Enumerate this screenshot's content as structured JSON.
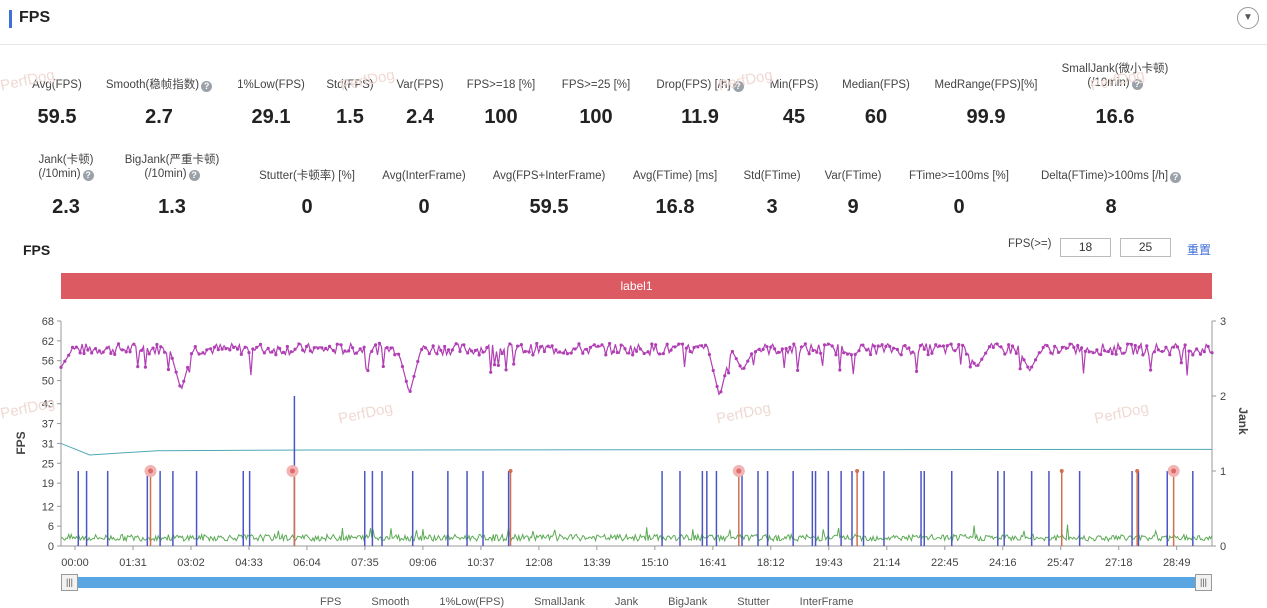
{
  "header": {
    "title": "FPS",
    "toggle_icon": "chevron-down-icon"
  },
  "metrics_row1": [
    {
      "label": "Avg(FPS)",
      "value": "59.5",
      "help": false
    },
    {
      "label": "Smooth(稳帧指数)",
      "value": "2.7",
      "help": true
    },
    {
      "label": "1%Low(FPS)",
      "value": "29.1",
      "help": false
    },
    {
      "label": "Std(FPS)",
      "value": "1.5",
      "help": false
    },
    {
      "label": "Var(FPS)",
      "value": "2.4",
      "help": false
    },
    {
      "label": "FPS>=18 [%]",
      "value": "100",
      "help": false
    },
    {
      "label": "FPS>=25 [%]",
      "value": "100",
      "help": false
    },
    {
      "label": "Drop(FPS) [/h]",
      "value": "11.9",
      "help": true
    },
    {
      "label": "Min(FPS)",
      "value": "45",
      "help": false
    },
    {
      "label": "Median(FPS)",
      "value": "60",
      "help": false
    },
    {
      "label": "MedRange(FPS)[%]",
      "value": "99.9",
      "help": false
    },
    {
      "label": "SmallJank(微小卡顿)",
      "label2": "(/10min)",
      "value": "16.6",
      "help": true
    }
  ],
  "metrics_row2": [
    {
      "label": "Jank(卡顿)",
      "label2": "(/10min)",
      "value": "2.3",
      "help": true
    },
    {
      "label": "BigJank(严重卡顿)",
      "label2": "(/10min)",
      "value": "1.3",
      "help": true
    },
    {
      "label": "Stutter(卡顿率) [%]",
      "value": "0",
      "help": false
    },
    {
      "label": "Avg(InterFrame)",
      "value": "0",
      "help": false
    },
    {
      "label": "Avg(FPS+InterFrame)",
      "value": "59.5",
      "help": false
    },
    {
      "label": "Avg(FTime) [ms]",
      "value": "16.8",
      "help": false
    },
    {
      "label": "Std(FTime)",
      "value": "3",
      "help": false
    },
    {
      "label": "Var(FTime)",
      "value": "9",
      "help": false
    },
    {
      "label": "FTime>=100ms [%]",
      "value": "0",
      "help": false
    },
    {
      "label": "Delta(FTime)>100ms [/h]",
      "value": "8",
      "help": true
    }
  ],
  "chart_section": {
    "title": "FPS",
    "fps_threshold_label": "FPS(>=)",
    "threshold1": "18",
    "threshold2": "25",
    "reset_label": "重置",
    "label_bar": "label1",
    "watermark": "PerfDog"
  },
  "chart_data": {
    "type": "line",
    "ylabel": "FPS",
    "ylabel_right": "Jank",
    "y_ticks": [
      0,
      6,
      12,
      19,
      25,
      31,
      37,
      43,
      50,
      56,
      62,
      68
    ],
    "y_right_ticks": [
      0,
      1,
      2,
      3
    ],
    "ylim": [
      0,
      68
    ],
    "ylim_right": [
      0,
      3
    ],
    "x_ticks": [
      "00:00",
      "01:31",
      "03:02",
      "04:33",
      "06:04",
      "07:35",
      "09:06",
      "10:37",
      "12:08",
      "13:39",
      "15:10",
      "16:41",
      "18:12",
      "19:43",
      "21:14",
      "22:45",
      "24:16",
      "25:47",
      "27:18",
      "28:49"
    ],
    "duration_s": 1800,
    "series": [
      {
        "name": "FPS",
        "color": "#b03fb3",
        "baseline": 59.5,
        "dips": [
          [
            0,
            54
          ],
          [
            188,
            47
          ],
          [
            545,
            46
          ],
          [
            1030,
            45
          ],
          [
            1066,
            53
          ],
          [
            1432,
            54
          ],
          [
            1515,
            53
          ]
        ]
      },
      {
        "name": "1%Low(FPS)",
        "color": "#4fa8b6",
        "values": [
          [
            0,
            31
          ],
          [
            45,
            27.5
          ],
          [
            150,
            28.8
          ],
          [
            400,
            29
          ],
          [
            1800,
            29.2
          ]
        ]
      },
      {
        "name": "InterFrame",
        "color": "#5caa55",
        "baseline": 2.5
      },
      {
        "name": "SmallJank",
        "color": "#4a55c8",
        "times": [
          27,
          40,
          73,
          135,
          155,
          175,
          212,
          285,
          295,
          475,
          487,
          502,
          550,
          605,
          635,
          700,
          660,
          940,
          968,
          1003,
          1010,
          1025,
          1065,
          1090,
          1105,
          1145,
          1175,
          1180,
          1200,
          1220,
          1237,
          1255,
          1287,
          1345,
          1350,
          1393,
          1465,
          1475,
          1518,
          1545,
          1593,
          1675,
          1685,
          1730,
          1770
        ]
      },
      {
        "name": "Jank",
        "color": "#d0704f",
        "times": [
          140,
          365,
          703,
          1060,
          1245,
          1565,
          1683,
          1740
        ]
      },
      {
        "name": "BigJank",
        "color": "#e06a6a",
        "times": [
          140,
          362,
          1060,
          1740
        ]
      }
    ]
  },
  "legend": [
    "FPS",
    "Smooth",
    "1%Low(FPS)",
    "SmallJank",
    "Jank",
    "BigJank",
    "Stutter",
    "InterFrame"
  ]
}
